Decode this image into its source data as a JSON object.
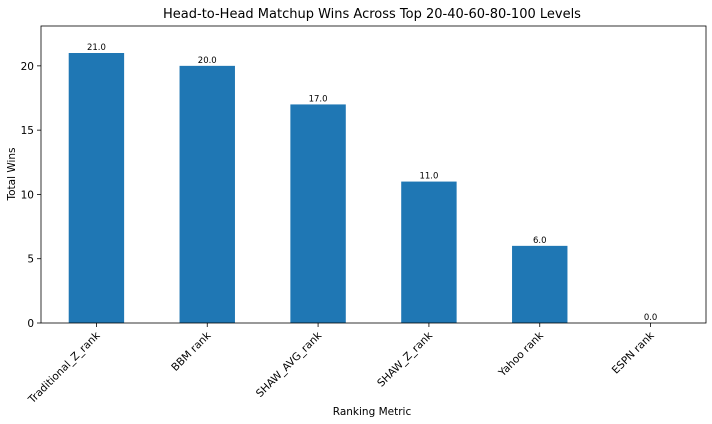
{
  "chart_data": {
    "type": "bar",
    "title": "Head-to-Head Matchup Wins Across Top 20-40-60-80-100 Levels",
    "xlabel": "Ranking Metric",
    "ylabel": "Total Wins",
    "categories": [
      "Traditional_Z_rank",
      "BBM rank",
      "SHAW_AVG_rank",
      "SHAW_Z_rank",
      "Yahoo rank",
      "ESPN rank"
    ],
    "values": [
      21,
      20,
      17,
      11,
      6,
      0
    ],
    "value_labels": [
      "21.0",
      "20.0",
      "17.0",
      "11.0",
      "6.0",
      "0.0"
    ],
    "yticks": [
      0,
      5,
      10,
      15,
      20
    ],
    "ylim": [
      0,
      23.1
    ],
    "grid": false,
    "legend": "none",
    "colors": {
      "bar": "#1f77b4"
    }
  }
}
